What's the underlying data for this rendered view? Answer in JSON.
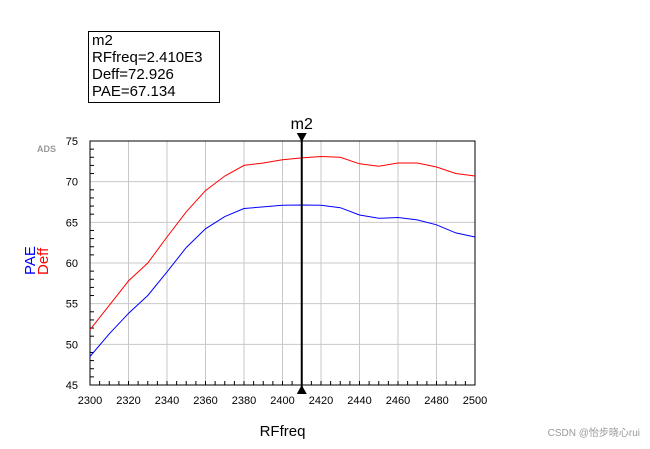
{
  "marker": {
    "name": "m2",
    "line1": "m2",
    "line2": "RFfreq=2.410E3",
    "line3": "Deff=72.926",
    "line4": "PAE=67.134",
    "x": 2410
  },
  "watermark": "CSDN @怡步晓心rui",
  "ads_label": "ADS",
  "chart_data": {
    "type": "line",
    "xlabel": "RFfreq",
    "ylabel_series": [
      "PAE",
      "Deff"
    ],
    "xlim": [
      2300,
      2500
    ],
    "ylim": [
      45,
      75
    ],
    "xticks": [
      2300,
      2320,
      2340,
      2360,
      2380,
      2400,
      2420,
      2440,
      2460,
      2480,
      2500
    ],
    "yticks": [
      45,
      50,
      55,
      60,
      65,
      70,
      75
    ],
    "grid": true,
    "x": [
      2300,
      2310,
      2320,
      2330,
      2340,
      2350,
      2360,
      2370,
      2380,
      2390,
      2400,
      2410,
      2420,
      2430,
      2440,
      2450,
      2460,
      2470,
      2480,
      2490,
      2500
    ],
    "series": [
      {
        "name": "Deff",
        "color": "#ff0000",
        "values": [
          51.8,
          54.8,
          57.8,
          60.0,
          63.2,
          66.3,
          68.9,
          70.7,
          72.0,
          72.3,
          72.7,
          72.926,
          73.1,
          73.0,
          72.2,
          71.9,
          72.3,
          72.3,
          71.8,
          71.0,
          70.7
        ]
      },
      {
        "name": "PAE",
        "color": "#0000ff",
        "values": [
          48.5,
          51.3,
          53.8,
          56.0,
          58.9,
          61.9,
          64.2,
          65.7,
          66.7,
          66.9,
          67.1,
          67.134,
          67.1,
          66.8,
          65.9,
          65.5,
          65.6,
          65.3,
          64.7,
          63.7,
          63.2
        ]
      }
    ]
  }
}
